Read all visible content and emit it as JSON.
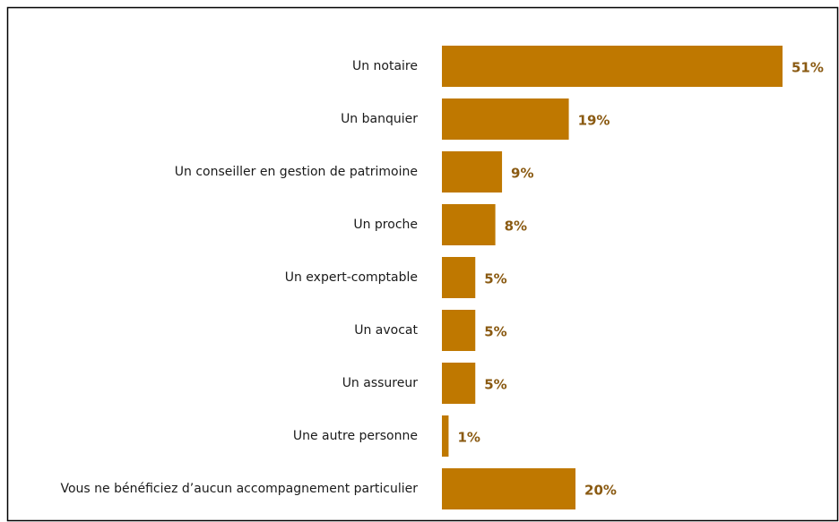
{
  "chart_data": {
    "type": "bar",
    "orientation": "horizontal",
    "color": "#bf7800",
    "categories": [
      "Un notaire",
      "Un banquier",
      "Un conseiller en gestion de patrimoine",
      "Un proche",
      "Un expert-comptable",
      "Un avocat",
      "Un assureur",
      "Une autre personne",
      "Vous ne bénéficiez d’aucun accompagnement particulier"
    ],
    "values": [
      51,
      19,
      9,
      8,
      5,
      5,
      5,
      1,
      20
    ],
    "value_labels": [
      "51%",
      "19%",
      "9%",
      "8%",
      "5%",
      "5%",
      "5%",
      "1%",
      "20%"
    ]
  }
}
